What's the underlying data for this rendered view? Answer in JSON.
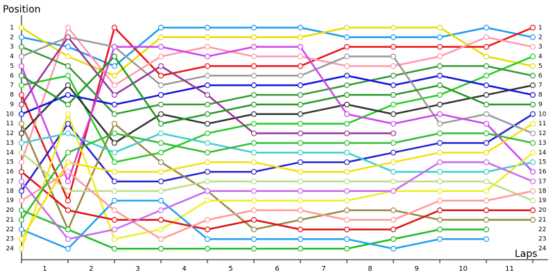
{
  "chart_data": {
    "type": "line",
    "y_label": "Position",
    "x_label": "Laps",
    "x": [
      0,
      1,
      2,
      3,
      4,
      5,
      6,
      7,
      8,
      9,
      10,
      11
    ],
    "xlim": [
      0,
      11.25
    ],
    "xticks": [
      {
        "value": 0.5,
        "label": "1"
      },
      {
        "value": 1.5,
        "label": "2"
      },
      {
        "value": 2.5,
        "label": "3"
      },
      {
        "value": 3.5,
        "label": "4"
      },
      {
        "value": 4.5,
        "label": "5"
      },
      {
        "value": 5.5,
        "label": "6"
      },
      {
        "value": 6.5,
        "label": "7"
      },
      {
        "value": 7.5,
        "label": "8"
      },
      {
        "value": 8.5,
        "label": "9"
      },
      {
        "value": 9.5,
        "label": "10"
      },
      {
        "value": 10.5,
        "label": "11"
      }
    ],
    "ylim": [
      25,
      0
    ],
    "yticks": [
      1,
      2,
      3,
      4,
      5,
      6,
      7,
      8,
      9,
      10,
      11,
      12,
      13,
      14,
      15,
      16,
      17,
      18,
      19,
      20,
      21,
      22,
      23,
      24
    ],
    "series": [
      {
        "color": "#1a9cf0",
        "values": [
          2,
          3,
          5,
          1,
          1,
          1,
          1,
          2,
          2,
          2,
          1,
          2
        ]
      },
      {
        "color": "#e8dc00",
        "values": [
          1,
          4,
          6,
          2,
          2,
          2,
          2,
          1,
          1,
          1,
          4,
          5
        ]
      },
      {
        "color": "#ee1111",
        "values": [
          8,
          19,
          1,
          6,
          5,
          5,
          5,
          3,
          3,
          3,
          3,
          1
        ]
      },
      {
        "color": "#ff99aa",
        "values": [
          15,
          1,
          7,
          4,
          3,
          4,
          4,
          5,
          5,
          4,
          2,
          3
        ]
      },
      {
        "color": "#22cc22",
        "values": [
          7,
          6,
          15,
          14,
          12,
          11,
          11,
          11,
          9,
          8,
          6,
          4
        ]
      },
      {
        "color": "#339933",
        "values": [
          3,
          5,
          10,
          9,
          9,
          8,
          8,
          7,
          6,
          5,
          5,
          6
        ]
      },
      {
        "color": "#333333",
        "values": [
          12,
          7,
          13,
          10,
          11,
          10,
          10,
          9,
          10,
          9,
          8,
          7
        ]
      },
      {
        "color": "#1111dd",
        "values": [
          10,
          8,
          9,
          8,
          7,
          7,
          7,
          6,
          7,
          6,
          7,
          8
        ]
      },
      {
        "color": "#2222cc",
        "values": [
          18,
          11,
          17,
          17,
          16,
          16,
          15,
          15,
          14,
          13,
          13,
          10
        ]
      },
      {
        "color": "#999999",
        "values": [
          4,
          2,
          3,
          7,
          6,
          6,
          6,
          4,
          4,
          11,
          10,
          12
        ]
      },
      {
        "color": "#cc44ee",
        "values": [
          5,
          17,
          3,
          3,
          4,
          3,
          3,
          10,
          11,
          10,
          11,
          16
        ]
      },
      {
        "color": "#993399",
        "values": [
          9,
          2,
          8,
          5,
          8,
          12,
          12,
          12,
          12,
          null,
          null,
          null
        ]
      },
      {
        "color": "#998844",
        "values": [
          11,
          22,
          11,
          15,
          18,
          22,
          21,
          20,
          20,
          21,
          21,
          21
        ]
      },
      {
        "color": "#bbdd88",
        "values": [
          14,
          18,
          18,
          18,
          17,
          17,
          17,
          17,
          17,
          17,
          17,
          19
        ]
      },
      {
        "color": "#44cccc",
        "values": [
          13,
          12,
          14,
          12,
          13,
          14,
          14,
          14,
          16,
          16,
          16,
          15
        ]
      },
      {
        "color": "#eeee22",
        "values": [
          24,
          10,
          23,
          22,
          19,
          19,
          19,
          19,
          18,
          18,
          18,
          14
        ]
      },
      {
        "color": "#22bb22",
        "values": [
          20,
          22,
          24,
          24,
          24,
          24,
          24,
          24,
          23,
          22,
          22,
          null
        ]
      },
      {
        "color": "#22a0ee",
        "values": [
          22,
          24,
          19,
          19,
          23,
          23,
          23,
          23,
          24,
          23,
          23,
          null
        ]
      },
      {
        "color": "#dd1111",
        "values": [
          16,
          20,
          21,
          21,
          22,
          21,
          22,
          22,
          22,
          20,
          20,
          20
        ]
      },
      {
        "color": "#ff9999",
        "values": [
          19,
          16,
          20,
          23,
          21,
          20,
          20,
          21,
          21,
          19,
          19,
          18
        ]
      },
      {
        "color": "#cc66ee",
        "values": [
          17,
          23,
          22,
          20,
          18,
          18,
          18,
          18,
          18,
          15,
          15,
          17
        ]
      },
      {
        "color": "#f0e010",
        "values": [
          23,
          15,
          16,
          16,
          15,
          15,
          16,
          16,
          15,
          14,
          14,
          11
        ]
      },
      {
        "color": "#33bb33",
        "values": [
          21,
          14,
          12,
          13,
          14,
          13,
          13,
          13,
          13,
          12,
          12,
          13
        ]
      },
      {
        "color": "#229922",
        "values": [
          6,
          9,
          4,
          11,
          10,
          9,
          9,
          8,
          8,
          7,
          9,
          9
        ]
      }
    ]
  }
}
